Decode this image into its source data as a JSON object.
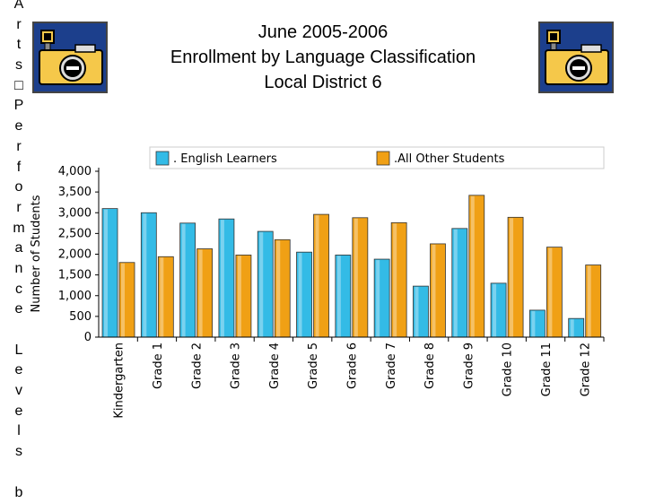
{
  "side_text": [
    "A",
    "r",
    "t",
    "s",
    "□",
    "P",
    "e",
    "r",
    "f",
    "o",
    "r",
    "m",
    "a",
    "n",
    "c",
    "e",
    " ",
    "L",
    "e",
    "v",
    "e",
    "l",
    "s",
    " ",
    "b"
  ],
  "header": {
    "title_lines": [
      "June 2005-2006",
      "Enrollment by Language Classification",
      "Local District 6"
    ],
    "left_icon": "camera-icon",
    "right_icon": "camera-icon"
  },
  "colors": {
    "english_learners": "#33bbe6",
    "all_other": "#f0a015",
    "icon_bg": "#1c3f8c",
    "icon_body": "#f5c84a"
  },
  "chart_data": {
    "type": "bar",
    "categories": [
      "Kindergarten",
      "Grade 1",
      "Grade 2",
      "Grade 3",
      "Grade 4",
      "Grade 5",
      "Grade 6",
      "Grade 7",
      "Grade 8",
      "Grade 9",
      "Grade 10",
      "Grade 11",
      "Grade 12"
    ],
    "series": [
      {
        "name": ". English Learners",
        "values": [
          3100,
          3000,
          2750,
          2850,
          2550,
          2050,
          1980,
          1880,
          1230,
          2620,
          1300,
          650,
          450
        ]
      },
      {
        "name": ".All Other Students",
        "values": [
          1800,
          1940,
          2130,
          1980,
          2350,
          2960,
          2880,
          2760,
          2250,
          3420,
          2890,
          2170,
          1740
        ]
      }
    ],
    "ylabel": "Number of Students",
    "yticks": [
      "0",
      "500",
      "1,000",
      "1,500",
      "2,000",
      "2,500",
      "3,000",
      "3,500",
      "4,000"
    ],
    "ylim": [
      0,
      4000
    ],
    "legend_position": "top"
  }
}
